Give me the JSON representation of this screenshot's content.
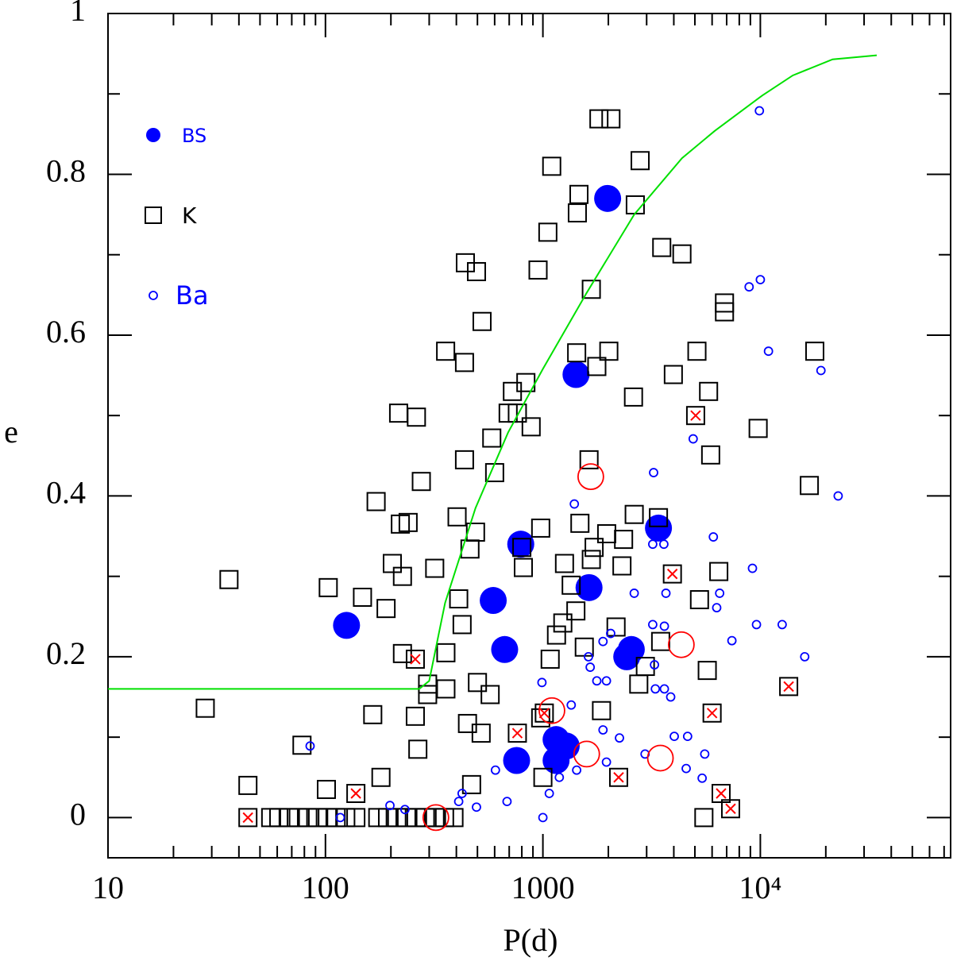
{
  "chart_data": {
    "type": "scatter",
    "xlabel": "P(d)",
    "ylabel": "e",
    "xscale": "log",
    "xlim": [
      10,
      75000
    ],
    "ylim": [
      -0.05,
      1
    ],
    "xticks": [
      10,
      100,
      1000,
      {
        "value": 10000,
        "label": "10⁴"
      }
    ],
    "yticks": [
      0,
      0.2,
      0.4,
      0.6,
      0.8,
      1
    ],
    "legend": "upper left",
    "series": [
      {
        "name": "BS",
        "color": "#0000ff",
        "marker": "filled-circle",
        "x": [
          125,
          591,
          667,
          791,
          757,
          1420,
          1630,
          1985,
          3400,
          2430,
          2550,
          1150,
          1280,
          1150
        ],
        "values": [
          0.239,
          0.27,
          0.209,
          0.34,
          0.071,
          0.551,
          0.286,
          0.77,
          0.36,
          0.2,
          0.209,
          0.097,
          0.089,
          0.071
        ]
      },
      {
        "name": "K",
        "color": "#000000",
        "marker": "square",
        "x": [
          28,
          36,
          44,
          78,
          103,
          101,
          148,
          190,
          171,
          165,
          180,
          217,
          221,
          240,
          203,
          226,
          226,
          259,
          262,
          276,
          266,
          295,
          295,
          318,
          357,
          358,
          358,
          403,
          436,
          440,
          410,
          425,
          450,
          495,
          470,
          462,
          490,
          436,
          525,
          500,
          520,
          572,
          582,
          600,
          724,
          692,
          763,
          800,
          813,
          835,
          883,
          977,
          950,
          977,
          1000,
          1054,
          1098,
          1080,
          1155,
          1235,
          1257,
          1349,
          1418,
          1430,
          1465,
          1440,
          1480,
          1550,
          1630,
          1670,
          1670,
          1720,
          1810,
          2055,
          1770,
          1860,
          1965,
          2010,
          2170,
          2310,
          2350,
          2610,
          2630,
          2660,
          2800,
          2760,
          2960,
          3400,
          3520,
          3480,
          3980,
          4360,
          5110,
          5250,
          5780,
          5910,
          5700,
          6840,
          6840,
          5500,
          6440,
          9770,
          17800,
          16800,
          56,
          61,
          68,
          75,
          83,
          92,
          102,
          112,
          124,
          138,
          174,
          193,
          213,
          236,
          261,
          288,
          319,
          353,
          390,
          44,
          138,
          259,
          763,
          1015,
          2230,
          3940,
          5040,
          6000,
          6600,
          7300,
          13500
        ],
        "values": [
          0.136,
          0.296,
          0.04,
          0.09,
          0.286,
          0.035,
          0.274,
          0.26,
          0.393,
          0.128,
          0.05,
          0.503,
          0.365,
          0.367,
          0.316,
          0.3,
          0.204,
          0.126,
          0.498,
          0.418,
          0.085,
          0.166,
          0.153,
          0.31,
          0.58,
          0.205,
          0.16,
          0.374,
          0.566,
          0.69,
          0.272,
          0.24,
          0.117,
          0.679,
          0.041,
          0.334,
          0.355,
          0.445,
          0.617,
          0.168,
          0.105,
          0.153,
          0.472,
          0.429,
          0.53,
          0.503,
          0.503,
          0.336,
          0.311,
          0.541,
          0.486,
          0.36,
          0.681,
          0.124,
          0.05,
          0.728,
          0.81,
          0.197,
          0.227,
          0.242,
          0.316,
          0.289,
          0.257,
          0.578,
          0.775,
          0.752,
          0.366,
          0.212,
          0.445,
          0.657,
          0.321,
          0.336,
          0.869,
          0.869,
          0.561,
          0.133,
          0.353,
          0.58,
          0.237,
          0.313,
          0.346,
          0.523,
          0.377,
          0.762,
          0.817,
          0.166,
          0.188,
          0.373,
          0.709,
          0.219,
          0.551,
          0.701,
          0.58,
          0.271,
          0.53,
          0.451,
          0.183,
          0.64,
          0.629,
          0,
          0.306,
          0.484,
          0.58,
          0.413,
          0,
          0,
          0,
          0,
          0,
          0,
          0,
          0,
          0,
          0,
          0,
          0,
          0,
          0,
          0,
          0,
          0,
          0,
          0,
          0,
          0.03,
          0.197,
          0.105,
          0.13,
          0.05,
          0.303,
          0.5,
          0.13,
          0.03,
          0.011,
          0.163
        ]
      },
      {
        "name": "Ba",
        "color": "#0000ff",
        "marker": "circle",
        "x": [
          85,
          117,
          198,
          232,
          410,
          425,
          495,
          605,
          684,
          990,
          1000,
          1070,
          1190,
          1395,
          1350,
          1430,
          1620,
          1650,
          1770,
          1890,
          1960,
          1890,
          1960,
          2050,
          2250,
          2630,
          2950,
          3230,
          3200,
          3260,
          3290,
          3200,
          3600,
          3620,
          3680,
          3620,
          3870,
          4020,
          4560,
          4630,
          4910,
          5400,
          5550,
          6080,
          6300,
          6500,
          7400,
          8880,
          9200,
          9600,
          9900,
          10000,
          10900,
          12600,
          16000,
          19000,
          22800
        ],
        "values": [
          0.089,
          0,
          0.015,
          0.01,
          0.02,
          0.03,
          0.013,
          0.059,
          0.02,
          0.168,
          0,
          0.03,
          0.05,
          0.39,
          0.14,
          0.059,
          0.2,
          0.187,
          0.17,
          0.219,
          0.17,
          0.109,
          0.069,
          0.229,
          0.099,
          0.279,
          0.079,
          0.429,
          0.24,
          0.19,
          0.16,
          0.34,
          0.34,
          0.238,
          0.279,
          0.16,
          0.15,
          0.101,
          0.061,
          0.101,
          0.471,
          0.049,
          0.079,
          0.349,
          0.261,
          0.279,
          0.22,
          0.66,
          0.31,
          0.24,
          0.879,
          0.669,
          0.58,
          0.24,
          0.2,
          0.556,
          0.4
        ]
      },
      {
        "color": "#ff0000",
        "marker": "x",
        "x": [
          44,
          138,
          259,
          763,
          1015,
          2230,
          3940,
          5040,
          6000,
          6600,
          7300,
          13500
        ],
        "values": [
          0,
          0.03,
          0.197,
          0.105,
          0.13,
          0.05,
          0.303,
          0.5,
          0.13,
          0.03,
          0.011,
          0.163
        ]
      },
      {
        "color": "#ff0000",
        "marker": "ring",
        "x": [
          322,
          1100,
          1660,
          1590,
          3470,
          4330
        ],
        "values": [
          0,
          0.133,
          0.424,
          0.079,
          0.074,
          0.215
        ]
      },
      {
        "color": "#00e000",
        "type": "line",
        "x": [
          10,
          270,
          300,
          330,
          355,
          490,
          692,
          1000,
          1585,
          2630,
          4360,
          6170,
          10200,
          14100,
          21500,
          34300
        ],
        "values": [
          0.16,
          0.16,
          0.17,
          0.225,
          0.267,
          0.385,
          0.479,
          0.558,
          0.652,
          0.75,
          0.82,
          0.854,
          0.898,
          0.923,
          0.943,
          0.948
        ]
      }
    ]
  }
}
